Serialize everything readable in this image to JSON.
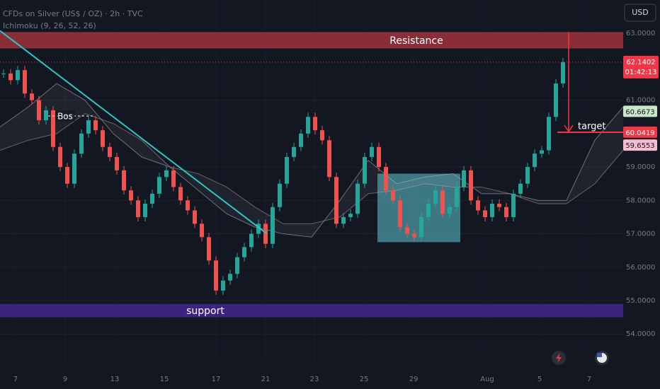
{
  "chart_data": {
    "type": "candlestick",
    "title": "CFDs on Silver (US$ / OZ) · 2h · TVC",
    "indicator": "Ichimoku (9, 26, 52, 26)",
    "currency": "USD",
    "closes": [
      61.8,
      61.6,
      61.9,
      61.2,
      61.0,
      60.4,
      60.7,
      59.6,
      59.0,
      58.5,
      59.4,
      60.0,
      60.4,
      60.1,
      59.6,
      59.3,
      58.9,
      58.3,
      58.0,
      57.5,
      57.9,
      58.2,
      58.7,
      58.9,
      58.4,
      58.0,
      57.7,
      57.3,
      56.9,
      56.2,
      55.3,
      55.6,
      55.8,
      56.3,
      56.6,
      57.0,
      57.3,
      56.7,
      57.8,
      58.5,
      59.3,
      59.6,
      60.0,
      60.5,
      60.1,
      59.8,
      58.7,
      57.3,
      57.5,
      57.6,
      58.5,
      59.3,
      59.6,
      59.0,
      58.3,
      58.0,
      57.2,
      57.0,
      56.9,
      57.5,
      57.9,
      58.3,
      57.6,
      57.8,
      58.4,
      58.9,
      58.0,
      57.7,
      57.5,
      57.9,
      57.8,
      57.5,
      58.2,
      58.5,
      59.0,
      59.4,
      59.5,
      60.5,
      61.5,
      62.1402
    ],
    "up_color": "#26a69a",
    "down_color": "#ef5350",
    "cloud": {
      "span_a": [
        60.2,
        60.8,
        61.5,
        61.0,
        60.0,
        59.3,
        59.0,
        58.3,
        57.6,
        57.2,
        57.0,
        56.9,
        58.0,
        59.2,
        58.5,
        58.7,
        58.8,
        58.2,
        58.2,
        58.0,
        58.0,
        59.8,
        60.8
      ],
      "span_b": [
        59.5,
        59.8,
        60.0,
        60.6,
        60.3,
        59.8,
        59.0,
        58.8,
        58.4,
        57.8,
        57.3,
        57.3,
        57.5,
        58.2,
        58.3,
        58.5,
        58.4,
        58.4,
        58.2,
        57.9,
        57.9,
        58.5,
        59.5
      ],
      "color": "#b2b5be"
    },
    "ylim": [
      53.2,
      64
    ],
    "yticks": [
      {
        "value": 63,
        "label": "63.0000"
      },
      {
        "value": 61,
        "label": "61.0000"
      },
      {
        "value": 59,
        "label": "59.0000"
      },
      {
        "value": 58,
        "label": "58.0000"
      },
      {
        "value": 57,
        "label": "57.0000"
      },
      {
        "value": 56,
        "label": "56.0000"
      },
      {
        "value": 55,
        "label": "55.0000"
      },
      {
        "value": 54,
        "label": "54.0000"
      }
    ],
    "x_labels": [
      "7",
      "9",
      "13",
      "15",
      "17",
      "21",
      "23",
      "25",
      "29",
      "Aug",
      "5",
      "7"
    ],
    "last_price": 62.1402,
    "countdown": "01:42:13",
    "badges": [
      {
        "value": 60.6673,
        "color": "#c8e6c9"
      },
      {
        "value": 60.0419,
        "color": "#f23645"
      },
      {
        "value": 59.6553,
        "color": "#f8bbd0"
      }
    ],
    "zones": [
      {
        "label": "Resistance",
        "range": [
          62.55,
          63.04
        ],
        "color": "#b2353f"
      },
      {
        "label": "support",
        "range": [
          54.5,
          54.9
        ],
        "color": "#4b2a9e"
      }
    ],
    "consolidation": {
      "range": [
        56.75,
        58.8
      ],
      "color": "#5fc9d6"
    },
    "trendline": [
      63.08,
      57.0
    ],
    "bos_label": "Bos",
    "target": 60.04,
    "target_label": "target"
  }
}
